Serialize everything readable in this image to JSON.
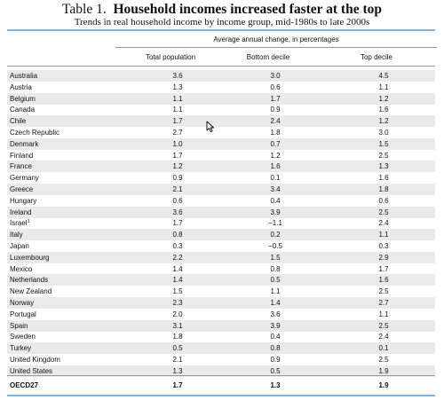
{
  "title": {
    "prefix": "Table 1.",
    "text": "Household incomes increased faster at the top"
  },
  "subtitle": "Trends in real household income by income group, mid-1980s to late 2000s",
  "header": {
    "span": "Average annual change, in percentages",
    "columns": [
      "Total population",
      "Bottom decile",
      "Top decile"
    ]
  },
  "rows": [
    {
      "country": "Australia",
      "total": "3.6",
      "bottom": "3.0",
      "top": "4.5"
    },
    {
      "country": "Austria",
      "total": "1.3",
      "bottom": "0.6",
      "top": "1.1"
    },
    {
      "country": "Belgium",
      "total": "1.1",
      "bottom": "1.7",
      "top": "1.2"
    },
    {
      "country": "Canada",
      "total": "1.1",
      "bottom": "0.9",
      "top": "1.6"
    },
    {
      "country": "Chile",
      "total": "1.7",
      "bottom": "2.4",
      "top": "1.2"
    },
    {
      "country": "Czech Republic",
      "total": "2.7",
      "bottom": "1.8",
      "top": "3.0"
    },
    {
      "country": "Denmark",
      "total": "1.0",
      "bottom": "0.7",
      "top": "1.5"
    },
    {
      "country": "Finland",
      "total": "1.7",
      "bottom": "1.2",
      "top": "2.5"
    },
    {
      "country": "France",
      "total": "1.2",
      "bottom": "1.6",
      "top": "1.3"
    },
    {
      "country": "Germany",
      "total": "0.9",
      "bottom": "0.1",
      "top": "1.6"
    },
    {
      "country": "Greece",
      "total": "2.1",
      "bottom": "3.4",
      "top": "1.8"
    },
    {
      "country": "Hungary",
      "total": "0.6",
      "bottom": "0.4",
      "top": "0.6"
    },
    {
      "country": "Ireland",
      "total": "3.6",
      "bottom": "3.9",
      "top": "2.5"
    },
    {
      "country": "Israel",
      "sup": "1",
      "total": "1.7",
      "bottom": "−1.1",
      "top": "2.4"
    },
    {
      "country": "Italy",
      "total": "0.8",
      "bottom": "0.2",
      "top": "1.1"
    },
    {
      "country": "Japan",
      "total": "0.3",
      "bottom": "−0.5",
      "top": "0.3"
    },
    {
      "country": "Luxembourg",
      "total": "2.2",
      "bottom": "1.5",
      "top": "2.9"
    },
    {
      "country": "Mexico",
      "total": "1.4",
      "bottom": "0.8",
      "top": "1.7"
    },
    {
      "country": "Netherlands",
      "total": "1.4",
      "bottom": "0.5",
      "top": "1.6"
    },
    {
      "country": "New Zealand",
      "total": "1.5",
      "bottom": "1.1",
      "top": "2.5"
    },
    {
      "country": "Norway",
      "total": "2.3",
      "bottom": "1.4",
      "top": "2.7"
    },
    {
      "country": "Portugal",
      "total": "2.0",
      "bottom": "3.6",
      "top": "1.1"
    },
    {
      "country": "Spain",
      "total": "3.1",
      "bottom": "3.9",
      "top": "2.5"
    },
    {
      "country": "Sweden",
      "total": "1.8",
      "bottom": "0.4",
      "top": "2.4"
    },
    {
      "country": "Turkey",
      "total": "0.5",
      "bottom": "0.8",
      "top": "0.1"
    },
    {
      "country": "United Kingdom",
      "total": "2.1",
      "bottom": "0.9",
      "top": "2.5"
    },
    {
      "country": "United States",
      "total": "1.3",
      "bottom": "0.5",
      "top": "1.9"
    }
  ],
  "total_row": {
    "country": "OECD27",
    "total": "1.7",
    "bottom": "1.3",
    "top": "1.9"
  },
  "colors": {
    "rule": "#7fb2dc",
    "shade": "#eaeaea"
  }
}
